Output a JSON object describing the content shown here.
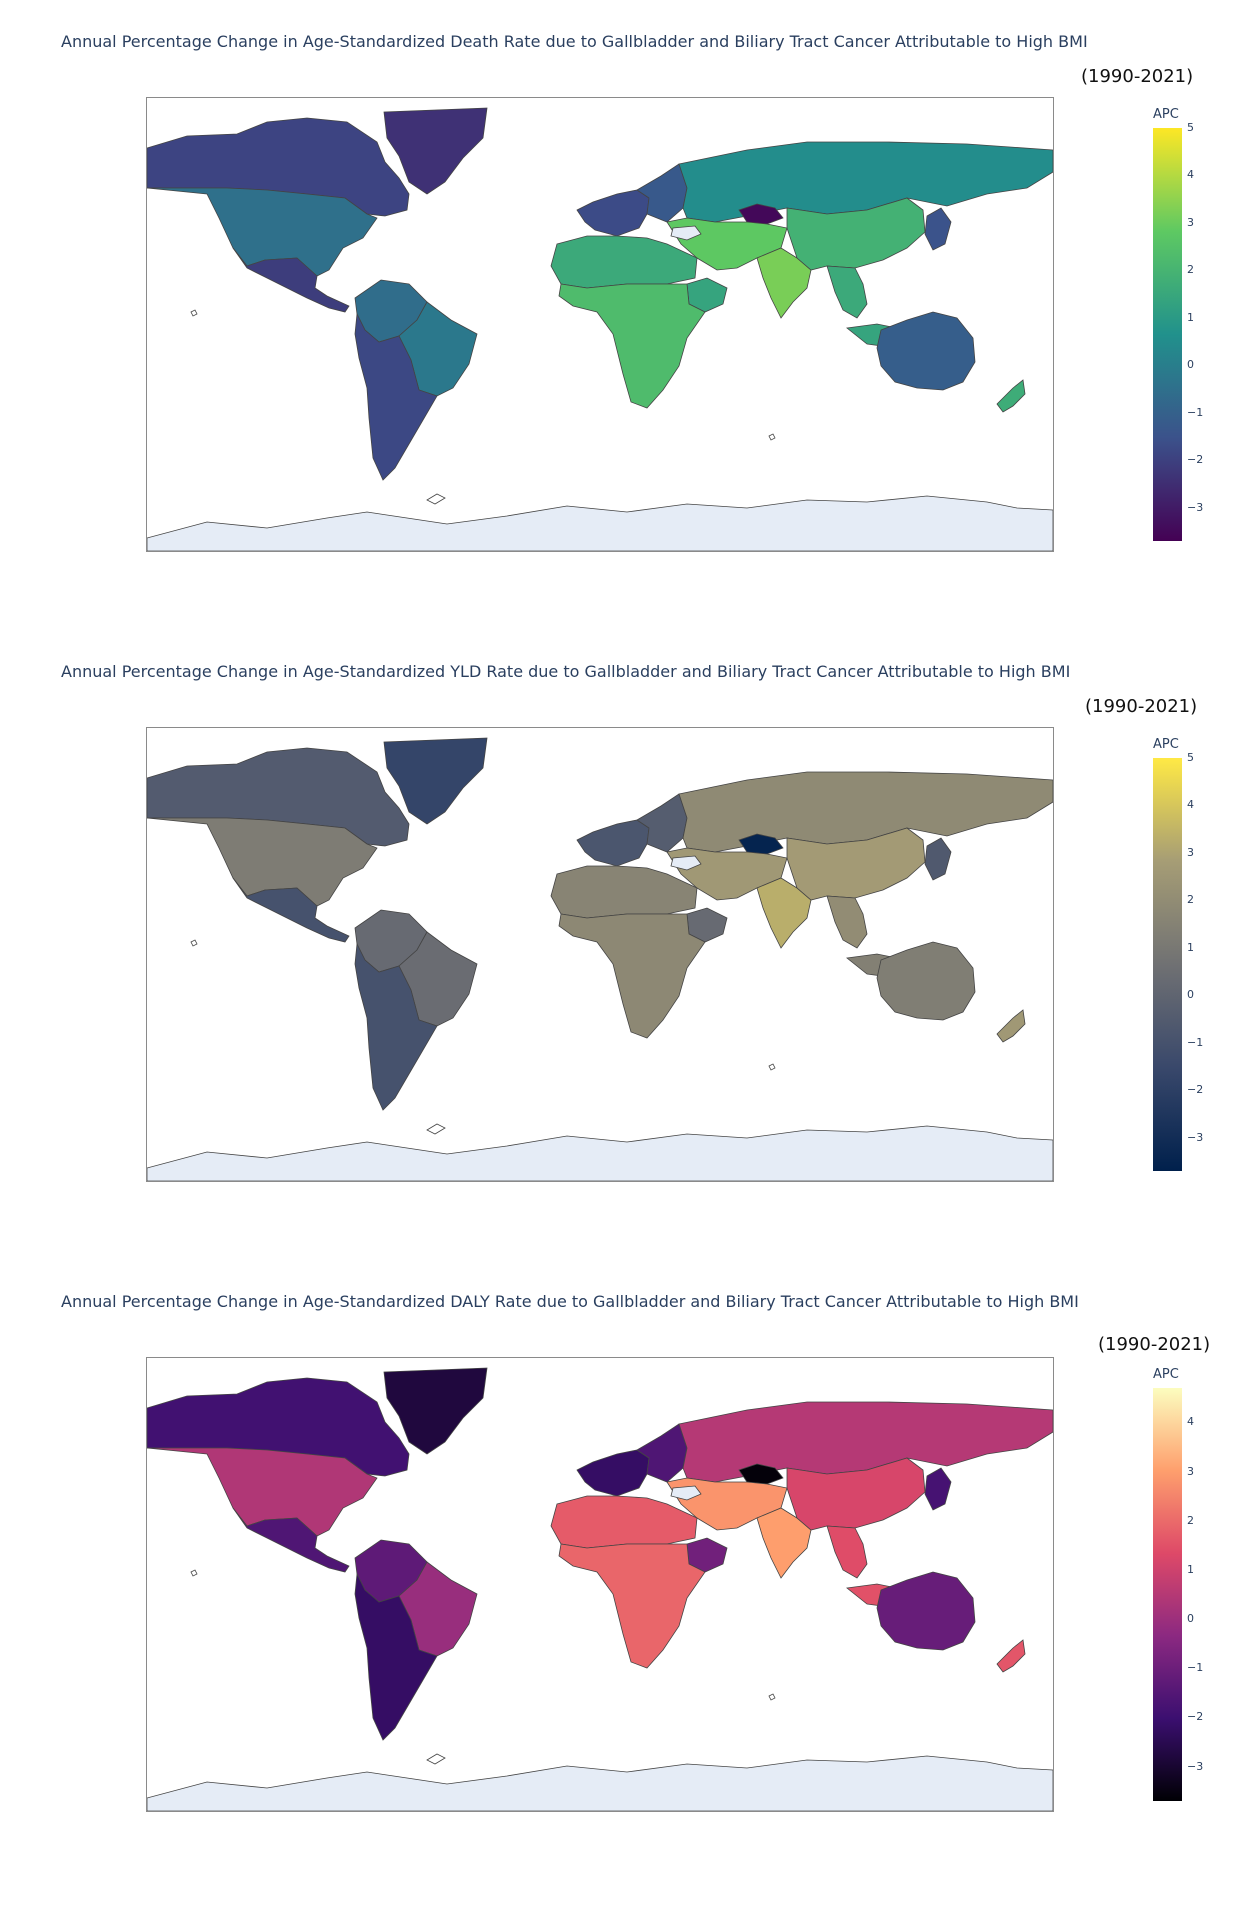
{
  "maps": [
    {
      "title": "Annual Percentage Change in Age-Standardized Death Rate due to Gallbladder and Biliary Tract Cancer Attributable to High BMI",
      "period": "(1990-2021)",
      "colorbar_title": "APC",
      "colorscale": "viridis",
      "colorscale_stops": [
        "#440154",
        "#3b528b",
        "#21918c",
        "#5ec962",
        "#fde725"
      ],
      "range": [
        -3.7,
        5
      ],
      "ticks": [
        "5",
        "4",
        "3",
        "2",
        "1",
        "0",
        "−1",
        "−2",
        "−3"
      ],
      "ocean_color": "#ffffff",
      "antarctica_color": "#e5ecf6",
      "regions": {
        "north_america": -0.5,
        "canada": -1.9,
        "greenland": -2.4,
        "mexico_central": -2.1,
        "south_america_north": -0.6,
        "andes_southern_cone": -1.8,
        "brazil": -0.2,
        "europe_west": -1.7,
        "europe_east": -1.3,
        "russia_central_asia": 0.5,
        "turkmenistan_area": -3.5,
        "middle_east": 2.8,
        "north_africa": 1.6,
        "sub_saharan_africa": 2.3,
        "horn_of_africa": 1.4,
        "south_asia": 3.2,
        "china": 1.9,
        "japan_korea": -1.5,
        "southeast_asia": 1.6,
        "indonesia": 1.4,
        "australia": -1.1,
        "new_zealand": 1.7
      }
    },
    {
      "title": "Annual Percentage Change in Age-Standardized YLD Rate due to Gallbladder and Biliary Tract Cancer Attributable to High BMI",
      "period": "(1990-2021)",
      "colorbar_title": "APC",
      "colorscale": "cividis",
      "colorscale_stops": [
        "#00204c",
        "#39486b",
        "#707173",
        "#a69d75",
        "#ffe945"
      ],
      "range": [
        -3.7,
        5
      ],
      "ticks": [
        "5",
        "4",
        "3",
        "2",
        "1",
        "0",
        "−1",
        "−2",
        "−3"
      ],
      "ocean_color": "#ffffff",
      "antarctica_color": "#e5ecf6",
      "regions": {
        "north_america": 1.2,
        "canada": -0.5,
        "greenland": -1.7,
        "mexico_central": -1.0,
        "south_america_north": 0.3,
        "andes_southern_cone": -1.0,
        "brazil": 0.4,
        "europe_west": -0.8,
        "europe_east": -0.4,
        "russia_central_asia": 1.9,
        "turkmenistan_area": -3.5,
        "middle_east": 2.6,
        "north_africa": 1.6,
        "sub_saharan_africa": 1.8,
        "horn_of_africa": 0.3,
        "south_asia": 3.3,
        "china": 2.7,
        "japan_korea": -0.6,
        "southeast_asia": 2.0,
        "indonesia": 1.4,
        "australia": 1.3,
        "new_zealand": 2.6
      }
    },
    {
      "title": "Annual Percentage Change in Age-Standardized DALY Rate due to Gallbladder and Biliary Tract Cancer Attributable to High BMI",
      "period": "(1990-2021)",
      "colorbar_title": "APC",
      "colorscale": "magma",
      "colorscale_stops": [
        "#000004",
        "#3b0f70",
        "#8c2981",
        "#de4968",
        "#fe9f6d",
        "#fcfdbf"
      ],
      "range": [
        -3.7,
        4.7
      ],
      "ticks": [
        "4",
        "3",
        "2",
        "1",
        "0",
        "−1",
        "−2",
        "−3"
      ],
      "ocean_color": "#ffffff",
      "antarctica_color": "#e5ecf6",
      "regions": {
        "north_america": 0.4,
        "canada": -1.9,
        "greenland": -2.8,
        "mexico_central": -1.6,
        "south_america_north": -1.3,
        "andes_southern_cone": -2.2,
        "brazil": -0.1,
        "europe_west": -2.2,
        "europe_east": -1.6,
        "russia_central_asia": 0.5,
        "turkmenistan_area": -3.6,
        "middle_east": 2.8,
        "north_africa": 1.7,
        "sub_saharan_africa": 1.9,
        "horn_of_africa": -0.9,
        "south_asia": 3.0,
        "china": 1.2,
        "japan_korea": -1.8,
        "southeast_asia": 1.4,
        "indonesia": 1.5,
        "australia": -1.1,
        "new_zealand": 1.6
      }
    }
  ]
}
